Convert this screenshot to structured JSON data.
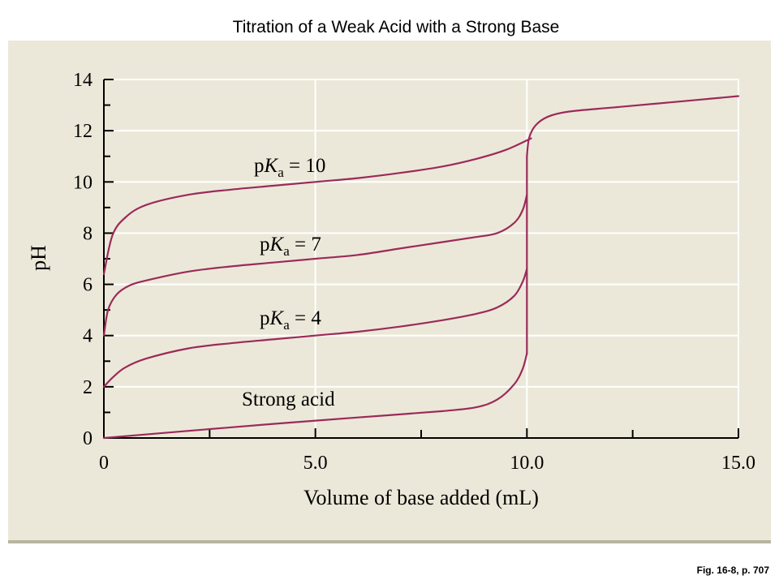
{
  "slide_title": "Titration of a Weak Acid with a Strong Base",
  "figure_caption": "Fig. 16-8, p. 707",
  "colors": {
    "background": "#ffffff",
    "panel": "#ece8d9",
    "panel_border": "#b9b49f",
    "curve": "#9b2a5a",
    "grid": "#ffffff",
    "axis": "#000000"
  },
  "chart_data": {
    "type": "line",
    "title": "",
    "xlabel": "Volume of base added (mL)",
    "ylabel": "pH",
    "xlim": [
      0,
      15
    ],
    "ylim": [
      0,
      14
    ],
    "x_tick_labels": [
      "0",
      "5.0",
      "10.0",
      "15.0"
    ],
    "y_tick_labels": [
      "0",
      "2",
      "4",
      "6",
      "8",
      "10",
      "12",
      "14"
    ],
    "grid": true,
    "legend": "none",
    "series": [
      {
        "name": "pKa = 10",
        "label_prefix": "p",
        "label_symbol": "K",
        "label_sub": "a",
        "label_suffix": " = 10",
        "x": [
          0,
          0.2,
          0.5,
          1,
          2,
          3,
          4,
          5,
          6,
          7,
          8,
          8.8,
          9.5,
          10.1
        ],
        "y": [
          6.4,
          7.9,
          8.6,
          9.1,
          9.5,
          9.7,
          9.85,
          10.0,
          10.15,
          10.35,
          10.6,
          10.9,
          11.25,
          11.7
        ]
      },
      {
        "name": "pKa = 7",
        "label_prefix": "p",
        "label_symbol": "K",
        "label_sub": "a",
        "label_suffix": " = 7",
        "x": [
          0,
          0.1,
          0.3,
          0.6,
          1,
          2,
          3,
          4,
          5,
          6,
          7,
          8,
          8.8,
          9.3,
          9.7,
          9.9,
          10
        ],
        "y": [
          4.0,
          5.0,
          5.6,
          5.95,
          6.15,
          6.5,
          6.7,
          6.85,
          7.0,
          7.15,
          7.4,
          7.65,
          7.85,
          8.0,
          8.4,
          8.9,
          9.5
        ]
      },
      {
        "name": "pKa = 4",
        "label_prefix": "p",
        "label_symbol": "K",
        "label_sub": "a",
        "label_suffix": " = 4",
        "x": [
          0,
          0.2,
          0.5,
          1,
          2,
          3,
          4,
          5,
          6,
          7,
          8,
          8.8,
          9.3,
          9.7,
          9.9,
          10
        ],
        "y": [
          2.0,
          2.35,
          2.75,
          3.1,
          3.5,
          3.7,
          3.85,
          4.0,
          4.15,
          4.35,
          4.6,
          4.85,
          5.1,
          5.55,
          6.1,
          6.6
        ]
      },
      {
        "name": "Strong acid",
        "label_prefix": "Strong acid",
        "label_symbol": "",
        "label_sub": "",
        "label_suffix": "",
        "x": [
          0,
          2,
          4,
          6,
          8,
          8.8,
          9.3,
          9.7,
          9.9,
          10
        ],
        "y": [
          0.0,
          0.28,
          0.55,
          0.8,
          1.05,
          1.2,
          1.5,
          2.1,
          2.7,
          3.3
        ]
      }
    ],
    "equivalence_segment": {
      "x": 10,
      "y_from": 3.3,
      "y_to": 11.0
    },
    "excess_base_curve": {
      "x": [
        10,
        10.05,
        10.2,
        10.5,
        11,
        12,
        13,
        14,
        15
      ],
      "y": [
        11.0,
        11.7,
        12.2,
        12.55,
        12.75,
        12.9,
        13.05,
        13.2,
        13.35
      ]
    }
  }
}
